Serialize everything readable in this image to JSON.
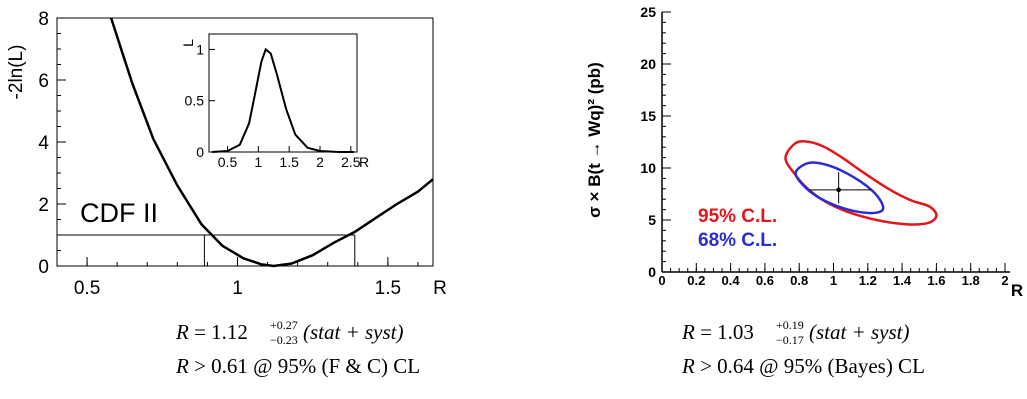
{
  "chart_data": [
    {
      "type": "line",
      "id": "left",
      "ylabel": "-2ln(L)",
      "xlabel": "R",
      "xlim": [
        0.4,
        1.65
      ],
      "ylim": [
        0,
        8
      ],
      "x_ticks": [
        "0.5",
        "1",
        "1.5"
      ],
      "y_ticks": [
        "0",
        "2",
        "4",
        "6",
        "8"
      ],
      "annotation": "CDF II",
      "series": [
        {
          "x": [
            0.58,
            0.65,
            0.72,
            0.8,
            0.88,
            0.95,
            1.02,
            1.08,
            1.12,
            1.18,
            1.25,
            1.32,
            1.39,
            1.46,
            1.53,
            1.6,
            1.65
          ],
          "y": [
            8.0,
            5.9,
            4.1,
            2.6,
            1.35,
            0.65,
            0.25,
            0.05,
            0.0,
            0.08,
            0.35,
            0.75,
            1.1,
            1.55,
            2.0,
            2.4,
            2.8
          ]
        }
      ],
      "hline_y": 1.0,
      "vlines_x": [
        0.89,
        1.39
      ],
      "inset": {
        "ylabel": "L",
        "xlabel": "R",
        "xlim": [
          0.2,
          2.6
        ],
        "ylim": [
          0,
          1.15
        ],
        "x_ticks": [
          "0.5",
          "1",
          "1.5",
          "2",
          "2.5"
        ],
        "y_ticks": [
          "0",
          "0.5",
          "1"
        ],
        "series": [
          {
            "x": [
              0.25,
              0.5,
              0.7,
              0.85,
              0.95,
              1.05,
              1.12,
              1.2,
              1.3,
              1.45,
              1.6,
              1.8,
              2.0,
              2.3,
              2.55
            ],
            "y": [
              0.0,
              0.01,
              0.07,
              0.28,
              0.58,
              0.88,
              1.0,
              0.96,
              0.76,
              0.42,
              0.17,
              0.04,
              0.01,
              0.0,
              0.0
            ]
          }
        ]
      }
    },
    {
      "type": "contour",
      "id": "right",
      "ylabel": "σ × B(t → Wq)² (pb)",
      "xlabel": "R",
      "xlim": [
        0,
        2
      ],
      "ylim": [
        0,
        25
      ],
      "x_ticks": [
        "0",
        "0.2",
        "0.4",
        "0.6",
        "0.8",
        "1",
        "1.2",
        "1.4",
        "1.6",
        "1.8",
        "2"
      ],
      "y_ticks": [
        "0",
        "5",
        "10",
        "15",
        "20",
        "25"
      ],
      "point": {
        "x": 1.03,
        "y": 7.9,
        "x_err": [
          0.17,
          0.19
        ],
        "y_err": [
          1.3,
          1.7
        ]
      },
      "contours": [
        {
          "name": "95% C.L.",
          "color": "#e4161b",
          "x": [
            0.72,
            0.78,
            0.86,
            0.95,
            1.05,
            1.18,
            1.32,
            1.45,
            1.56,
            1.6,
            1.55,
            1.42,
            1.25,
            1.08,
            0.95,
            0.85,
            0.77,
            0.72
          ],
          "y": [
            11.0,
            12.4,
            12.5,
            12.0,
            11.0,
            9.5,
            8.0,
            6.9,
            6.3,
            5.4,
            4.7,
            4.6,
            5.0,
            5.8,
            6.8,
            8.0,
            9.5,
            11.0
          ]
        },
        {
          "name": "68% C.L.",
          "color": "#2b2bd6",
          "x": [
            0.78,
            0.86,
            0.98,
            1.12,
            1.24,
            1.29,
            1.25,
            1.14,
            1.01,
            0.9,
            0.82,
            0.78
          ],
          "y": [
            9.6,
            10.5,
            10.2,
            9.1,
            7.6,
            6.2,
            5.7,
            5.8,
            6.4,
            7.3,
            8.4,
            9.6
          ]
        }
      ]
    }
  ],
  "formulas": {
    "left_line1": {
      "lhs": "R",
      "eq": " = 1.12",
      "sup": "+0.27",
      "sub": "−0.23",
      "paren": "(stat + syst)"
    },
    "left_line2": {
      "lhs": "R",
      "rest": " > 0.61 @ 95% (F & C) CL"
    },
    "right_line1": {
      "lhs": "R",
      "eq": " = 1.03",
      "sup": "+0.19",
      "sub": "−0.17",
      "paren": "(stat + syst)"
    },
    "right_line2": {
      "lhs": "R",
      "rest": " > 0.64 @ 95% (Bayes) CL"
    }
  }
}
